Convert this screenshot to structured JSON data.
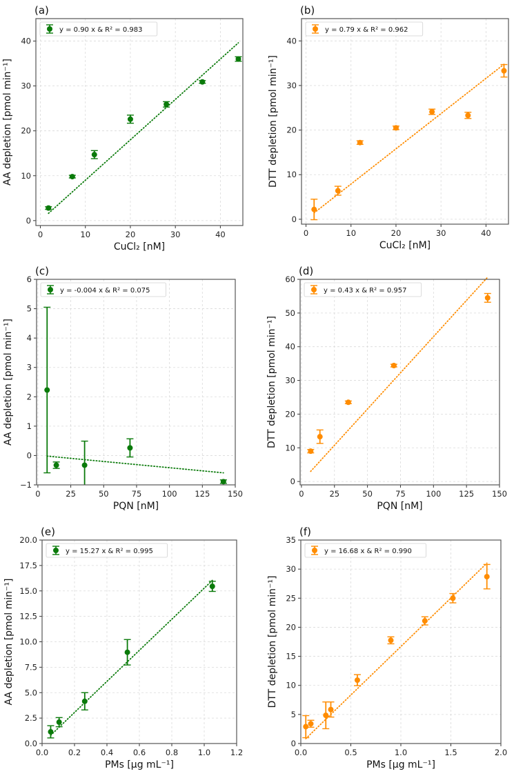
{
  "colors": {
    "aa": "#0a7a0a",
    "dtt": "#ff8c00"
  },
  "chart_data": [
    {
      "id": "a",
      "type": "scatter",
      "panel_label": "(a)",
      "series_color_key": "aa",
      "legend": "y = 0.90 x & R² = 0.983",
      "legend_position": "top-left",
      "xlabel": "CuCl₂ [nM]",
      "ylabel": "AA depletion [pmol min⁻¹]",
      "xlim": [
        -1,
        45
      ],
      "ylim": [
        -1.1,
        45
      ],
      "xticks": [
        0,
        10,
        20,
        30,
        40
      ],
      "yticks": [
        0,
        10,
        20,
        30,
        40
      ],
      "grid": true,
      "x": [
        1.8,
        7.1,
        12,
        20,
        28,
        36,
        44
      ],
      "y": [
        2.8,
        9.8,
        14.7,
        22.6,
        25.9,
        30.9,
        36.0
      ],
      "yerr": [
        0.3,
        0.3,
        0.9,
        0.9,
        0.6,
        0.3,
        0.5
      ],
      "fit": {
        "slope": 0.9,
        "x_range": [
          1.8,
          44
        ]
      }
    },
    {
      "id": "b",
      "type": "scatter",
      "panel_label": "(b)",
      "series_color_key": "dtt",
      "legend": "y = 0.79 x & R² = 0.962",
      "legend_position": "top-left",
      "xlabel": "CuCl₂ [nM]",
      "ylabel": "DTT depletion [pmol min⁻¹]",
      "xlim": [
        -1,
        45
      ],
      "ylim": [
        -1.1,
        45
      ],
      "xticks": [
        0,
        10,
        20,
        30,
        40
      ],
      "yticks": [
        0,
        10,
        20,
        30,
        40
      ],
      "grid": true,
      "x": [
        1.8,
        7.1,
        12,
        20,
        28,
        36,
        44
      ],
      "y": [
        2.2,
        6.4,
        17.2,
        20.5,
        24.1,
        23.3,
        33.3
      ],
      "yerr": [
        2.3,
        1.0,
        0.4,
        0.4,
        0.6,
        0.7,
        1.4
      ],
      "fit": {
        "slope": 0.79,
        "x_range": [
          1.8,
          44
        ]
      }
    },
    {
      "id": "c",
      "type": "scatter",
      "panel_label": "(c)",
      "series_color_key": "aa",
      "legend": "y = -0.004 x & R² = 0.075",
      "legend_position": "top-left",
      "xlabel": "PQN [nM]",
      "ylabel": "AA depletion [pmol min⁻¹]",
      "xlim": [
        -1,
        150
      ],
      "ylim": [
        -1,
        6
      ],
      "xticks": [
        0,
        25,
        50,
        75,
        100,
        125,
        150
      ],
      "yticks": [
        -1,
        0,
        1,
        2,
        3,
        4,
        5,
        6
      ],
      "ytick_labels": [
        "−1",
        "0",
        "1",
        "2",
        "3",
        "4",
        "5",
        "6"
      ],
      "grid": true,
      "x": [
        7,
        14,
        35.5,
        70,
        141
      ],
      "y": [
        2.23,
        -0.33,
        -0.33,
        0.26,
        -0.89
      ],
      "yerr": [
        2.82,
        0.11,
        0.82,
        0.31,
        0.06
      ],
      "fit": {
        "slope": -0.004,
        "x_range": [
          7,
          141
        ],
        "intercept_at_xmin": -0.02,
        "y_at_xmax": -0.59
      }
    },
    {
      "id": "d",
      "type": "scatter",
      "panel_label": "(d)",
      "series_color_key": "dtt",
      "legend": "y = 0.43 x & R² = 0.957",
      "legend_position": "top-left",
      "xlabel": "PQN [nM]",
      "ylabel": "DTT depletion [pmol min⁻¹]",
      "xlim": [
        -1,
        150
      ],
      "ylim": [
        -1,
        60
      ],
      "xticks": [
        0,
        25,
        50,
        75,
        100,
        125,
        150
      ],
      "yticks": [
        0,
        10,
        20,
        30,
        40,
        50,
        60
      ],
      "grid": true,
      "x": [
        7,
        14,
        35.5,
        70,
        141
      ],
      "y": [
        9.0,
        13.3,
        23.5,
        34.4,
        54.5
      ],
      "yerr": [
        0.5,
        2.0,
        0.4,
        0.4,
        1.3
      ],
      "fit": {
        "slope": 0.43,
        "x_range": [
          7,
          141
        ]
      }
    },
    {
      "id": "e",
      "type": "scatter",
      "panel_label": "(e)",
      "series_color_key": "aa",
      "legend": "y = 15.27 x & R² = 0.995",
      "legend_position": "top-left",
      "xlabel": "PMs [μg mL⁻¹]",
      "ylabel": "AA depletion [pmol min⁻¹]",
      "xlim": [
        0,
        1.2
      ],
      "ylim": [
        0,
        20
      ],
      "xticks": [
        0.0,
        0.2,
        0.4,
        0.6,
        0.8,
        1.0,
        1.2
      ],
      "xtick_labels": [
        "0.0",
        "0.2",
        "0.4",
        "0.6",
        "0.8",
        "1.0",
        "1.2"
      ],
      "yticks": [
        0,
        2.5,
        5,
        7.5,
        10,
        12.5,
        15,
        17.5,
        20
      ],
      "ytick_labels": [
        "0.0",
        "2.5",
        "5.0",
        "7.5",
        "10.0",
        "12.5",
        "15.0",
        "17.5",
        "20.0"
      ],
      "grid": true,
      "x": [
        0.053,
        0.105,
        0.263,
        0.526,
        1.05
      ],
      "y": [
        1.15,
        2.1,
        4.15,
        8.97,
        15.45
      ],
      "yerr": [
        0.6,
        0.45,
        0.85,
        1.25,
        0.5
      ],
      "fit": {
        "slope": 15.27,
        "x_range": [
          0.053,
          1.05
        ]
      }
    },
    {
      "id": "f",
      "type": "scatter",
      "panel_label": "(f)",
      "series_color_key": "dtt",
      "legend": "y = 16.68 x & R² = 0.990",
      "legend_position": "top-left",
      "xlabel": "PMs [μg mL⁻¹]",
      "ylabel": "DTT depletion [pmol min⁻¹]",
      "xlim": [
        0,
        2.0
      ],
      "ylim": [
        0,
        35
      ],
      "xticks": [
        0.0,
        0.5,
        1.0,
        1.5,
        2.0
      ],
      "xtick_labels": [
        "0.0",
        "0.5",
        "1.0",
        "1.5",
        "2.0"
      ],
      "yticks": [
        0,
        5,
        10,
        15,
        20,
        25,
        30,
        35
      ],
      "grid": true,
      "x": [
        0.05,
        0.1,
        0.25,
        0.3,
        0.565,
        0.9,
        1.24,
        1.52,
        1.86
      ],
      "y": [
        2.9,
        3.4,
        4.85,
        5.85,
        10.9,
        17.75,
        21.1,
        25.0,
        28.7
      ],
      "yerr": [
        1.9,
        0.6,
        2.3,
        1.3,
        0.95,
        0.6,
        0.7,
        0.8,
        2.1
      ],
      "fit": {
        "slope": 16.68,
        "x_range": [
          0.05,
          1.86
        ]
      }
    }
  ]
}
